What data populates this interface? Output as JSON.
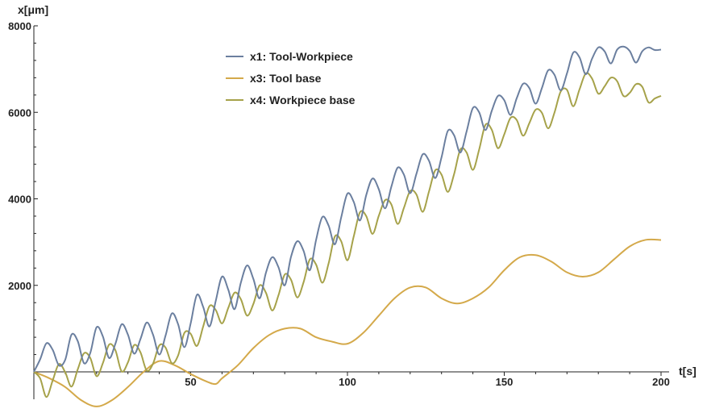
{
  "chart_data": {
    "type": "line",
    "xlabel": "t[s]",
    "ylabel": "x[μm]",
    "xlim": [
      0,
      200
    ],
    "ylim": [
      -800,
      8000
    ],
    "x_ticks": [
      50,
      100,
      150,
      200
    ],
    "y_ticks": [
      2000,
      4000,
      6000,
      8000
    ],
    "grid": false,
    "legend_position": "top-center",
    "series": [
      {
        "name": "x1: Tool-Workpiece",
        "color": "#6b7f9f",
        "x": [
          0,
          2,
          4,
          6,
          8,
          10,
          12,
          14,
          16,
          18,
          20,
          22,
          24,
          26,
          28,
          30,
          32,
          34,
          36,
          38,
          40,
          42,
          44,
          46,
          48,
          50,
          52,
          54,
          56,
          58,
          60,
          62,
          64,
          66,
          68,
          70,
          72,
          74,
          76,
          78,
          80,
          82,
          84,
          86,
          88,
          90,
          92,
          94,
          96,
          98,
          100,
          102,
          104,
          106,
          108,
          110,
          112,
          114,
          116,
          118,
          120,
          122,
          124,
          126,
          128,
          130,
          132,
          134,
          136,
          138,
          140,
          142,
          144,
          146,
          148,
          150,
          152,
          154,
          156,
          158,
          160,
          162,
          164,
          166,
          168,
          170,
          172,
          174,
          176,
          178,
          180,
          182,
          184,
          186,
          188,
          190,
          192,
          194,
          196,
          198,
          200
        ],
        "values": [
          0,
          290,
          660,
          510,
          150,
          280,
          860,
          710,
          200,
          440,
          1030,
          820,
          320,
          650,
          1100,
          860,
          420,
          760,
          1140,
          860,
          400,
          840,
          1350,
          1100,
          570,
          1120,
          1780,
          1500,
          1050,
          1640,
          2200,
          1900,
          1450,
          2060,
          2460,
          2150,
          1700,
          2290,
          2650,
          2420,
          2000,
          2660,
          3020,
          2800,
          2350,
          3050,
          3580,
          3380,
          2950,
          3570,
          4120,
          3930,
          3500,
          4090,
          4470,
          4220,
          3780,
          4280,
          4720,
          4560,
          4130,
          4580,
          5030,
          4880,
          4480,
          4960,
          5570,
          5470,
          5070,
          5560,
          6100,
          6000,
          5590,
          6030,
          6380,
          6280,
          5940,
          6330,
          6660,
          6560,
          6200,
          6560,
          6970,
          6870,
          6510,
          6900,
          7380,
          7270,
          6880,
          7240,
          7500,
          7410,
          7130,
          7450,
          7520,
          7420,
          7150,
          7410,
          7500,
          7440,
          7450
        ]
      },
      {
        "name": "x3: Tool base",
        "color": "#d4a94a",
        "x": [
          0,
          5,
          10,
          15,
          20,
          25,
          30,
          35,
          40,
          45,
          50,
          55,
          58,
          60,
          65,
          70,
          75,
          80,
          85,
          90,
          95,
          100,
          105,
          110,
          115,
          120,
          125,
          130,
          135,
          140,
          145,
          150,
          155,
          160,
          165,
          170,
          175,
          180,
          185,
          190,
          195,
          200
        ],
        "values": [
          0,
          -150,
          -350,
          -650,
          -800,
          -650,
          -350,
          0,
          250,
          150,
          -50,
          -220,
          -280,
          -150,
          150,
          550,
          850,
          1000,
          1000,
          800,
          700,
          650,
          900,
          1300,
          1700,
          1950,
          1950,
          1700,
          1580,
          1700,
          1950,
          2350,
          2650,
          2700,
          2550,
          2300,
          2200,
          2300,
          2600,
          2900,
          3050,
          3050
        ]
      },
      {
        "name": "x4: Workpiece base",
        "color": "#a6a24a",
        "x": [
          0,
          2,
          4,
          6,
          8,
          10,
          12,
          14,
          16,
          18,
          20,
          22,
          24,
          26,
          28,
          30,
          32,
          34,
          36,
          38,
          40,
          42,
          44,
          46,
          48,
          50,
          52,
          54,
          56,
          58,
          60,
          62,
          64,
          66,
          68,
          70,
          72,
          74,
          76,
          78,
          80,
          82,
          84,
          86,
          88,
          90,
          92,
          94,
          96,
          98,
          100,
          102,
          104,
          106,
          108,
          110,
          112,
          114,
          116,
          118,
          120,
          122,
          124,
          126,
          128,
          130,
          132,
          134,
          136,
          138,
          140,
          142,
          144,
          146,
          148,
          150,
          152,
          154,
          156,
          158,
          160,
          162,
          164,
          166,
          168,
          170,
          172,
          174,
          176,
          178,
          180,
          182,
          184,
          186,
          188,
          190,
          192,
          194,
          196,
          198,
          200
        ],
        "values": [
          0,
          -150,
          -580,
          -200,
          180,
          -10,
          -340,
          60,
          430,
          320,
          -100,
          200,
          630,
          500,
          10,
          220,
          620,
          450,
          30,
          190,
          610,
          560,
          200,
          380,
          900,
          880,
          600,
          1050,
          1520,
          1430,
          1120,
          1480,
          1830,
          1680,
          1300,
          1570,
          2000,
          1830,
          1420,
          1770,
          2250,
          2130,
          1720,
          2070,
          2600,
          2480,
          2060,
          2510,
          3130,
          3020,
          2580,
          3130,
          3690,
          3600,
          3190,
          3610,
          3970,
          3870,
          3420,
          3790,
          4180,
          4100,
          3700,
          4170,
          4660,
          4560,
          4160,
          4570,
          5140,
          5070,
          4670,
          5140,
          5710,
          5600,
          5170,
          5490,
          5870,
          5820,
          5460,
          5750,
          6060,
          5990,
          5630,
          5990,
          6480,
          6520,
          6140,
          6530,
          6900,
          6780,
          6430,
          6600,
          6800,
          6720,
          6380,
          6450,
          6650,
          6590,
          6230,
          6320,
          6380
        ]
      }
    ]
  }
}
